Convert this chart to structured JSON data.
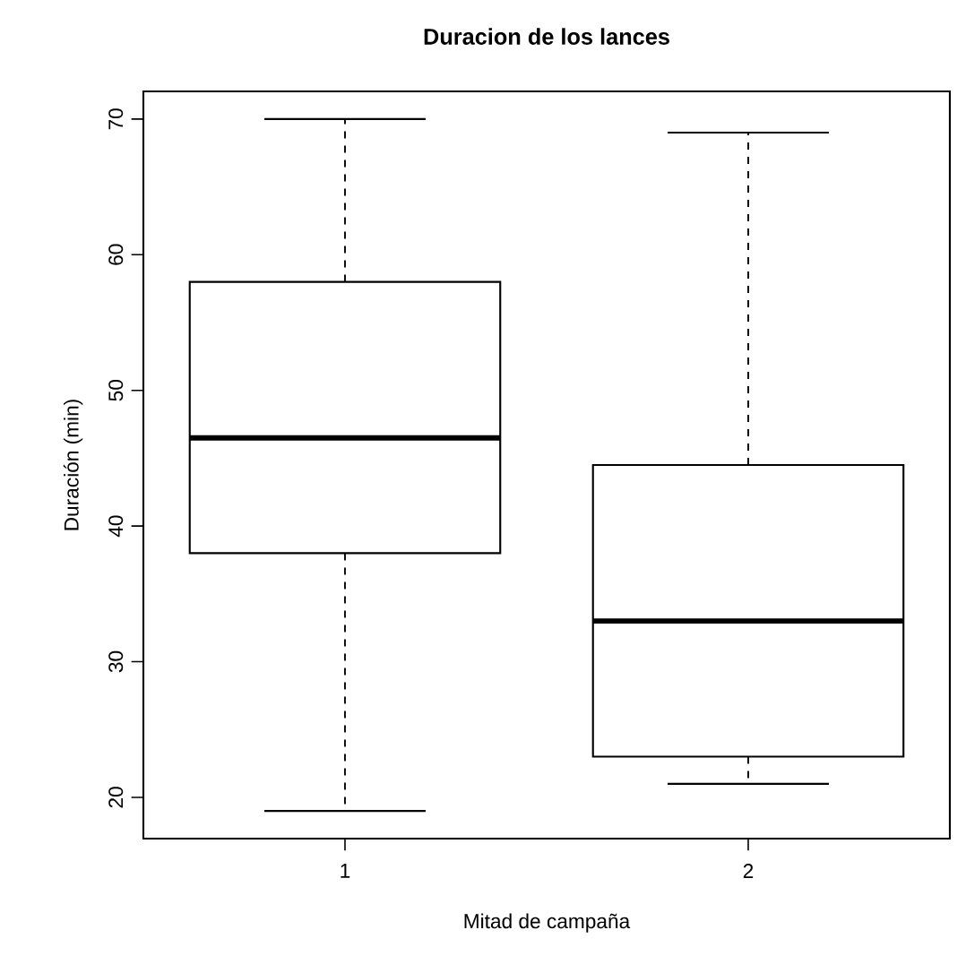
{
  "chart_data": {
    "type": "box",
    "title": "Duracion de los lances",
    "xlabel": "Mitad de campaña",
    "ylabel": "Duración (min)",
    "categories": [
      "1",
      "2"
    ],
    "boxes": [
      {
        "low": 19,
        "q1": 38,
        "median": 46.5,
        "q3": 58,
        "high": 70
      },
      {
        "low": 21,
        "q1": 23,
        "median": 33,
        "q3": 44.5,
        "high": 69
      }
    ],
    "ylim": [
      16.96,
      72.04
    ],
    "yticks": [
      20,
      30,
      40,
      50,
      60,
      70
    ],
    "grid": false
  }
}
